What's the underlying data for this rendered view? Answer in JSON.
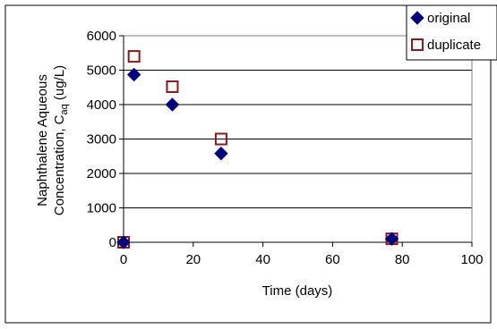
{
  "chart_data": {
    "type": "scatter",
    "xlabel": "Time (days)",
    "ylabel_line1": "Naphthalene Aqueous",
    "ylabel_line2_prefix": "Concentration, C",
    "ylabel_subscript": "aq",
    "ylabel_line2_suffix": " (ug/L)",
    "xlim": [
      0,
      100
    ],
    "ylim": [
      0,
      6000
    ],
    "x_ticks": [
      "0",
      "20",
      "40",
      "60",
      "80",
      "100"
    ],
    "y_ticks": [
      "0",
      "1000",
      "2000",
      "3000",
      "4000",
      "5000",
      "6000"
    ],
    "grid": "horizontal",
    "legend_position": "top-right",
    "series": [
      {
        "name": "original",
        "marker": "diamond-filled",
        "color": "#000080",
        "points": [
          {
            "x": 0,
            "y": 0
          },
          {
            "x": 3,
            "y": 4870
          },
          {
            "x": 14,
            "y": 4000
          },
          {
            "x": 28,
            "y": 2580
          },
          {
            "x": 77,
            "y": 100
          }
        ]
      },
      {
        "name": "duplicate",
        "marker": "square-open",
        "color": "#8B1A1A",
        "points": [
          {
            "x": 0,
            "y": 0
          },
          {
            "x": 3,
            "y": 5400
          },
          {
            "x": 14,
            "y": 4520
          },
          {
            "x": 28,
            "y": 3000
          },
          {
            "x": 77,
            "y": 100
          }
        ]
      }
    ]
  }
}
